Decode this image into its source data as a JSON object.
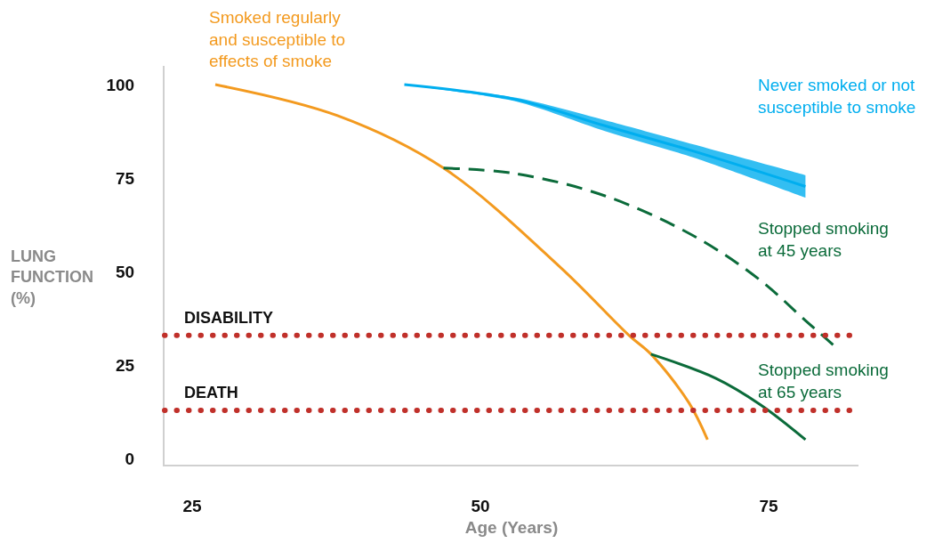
{
  "chart_data": {
    "type": "line",
    "xlabel": "Age (Years)",
    "ylabel": "LUNG FUNCTION (%)",
    "xlim": [
      22.6,
      82.8
    ],
    "ylim": [
      -1.5,
      105
    ],
    "xticks": [
      25,
      50,
      75
    ],
    "yticks": [
      0,
      25,
      50,
      75,
      100
    ],
    "grid": false,
    "series": [
      {
        "name": "Smoked regularly and susceptible to effects of smoke",
        "color": "#f39a1f",
        "x": [
          27,
          37.6,
          46.8,
          56.9,
          62.9,
          64.8,
          68.1,
          69.7
        ],
        "values": [
          100,
          91.7,
          77.7,
          51.3,
          33,
          28,
          15,
          5.2
        ]
      },
      {
        "name": "Never smoked or not susceptible to smoke",
        "color": "#00aeef",
        "x": [
          43.4,
          53.1,
          60.8,
          68.5,
          78.2
        ],
        "values": [
          100,
          96,
          89,
          82.2,
          72.8
        ],
        "lower": [
          100,
          95.5,
          87.6,
          80.5,
          69.8
        ],
        "upper": [
          100,
          96.5,
          90.5,
          84,
          75.8
        ]
      },
      {
        "name": "Stopped smoking at 45 years",
        "color": "#0b6b3a",
        "line_style": "dashed",
        "x": [
          46.8,
          53.1,
          60.8,
          68.5,
          74.3,
          78.2,
          80.9
        ],
        "values": [
          77.7,
          76.2,
          70.3,
          59.6,
          47.7,
          37,
          29.7
        ]
      },
      {
        "name": "Stopped smoking at 65 years",
        "color": "#0b6b3a",
        "line_style": "solid",
        "x": [
          64.8,
          70.4,
          74.3,
          78.2
        ],
        "values": [
          28,
          21.6,
          14.5,
          5.2
        ]
      }
    ],
    "ref_lines": [
      {
        "axis": "y",
        "value": 33,
        "label": "DISABILITY",
        "color": "#c0302a",
        "line_style": "dotted"
      },
      {
        "axis": "y",
        "value": 13,
        "label": "DEATH",
        "color": "#c0302a",
        "line_style": "dotted"
      }
    ]
  }
}
